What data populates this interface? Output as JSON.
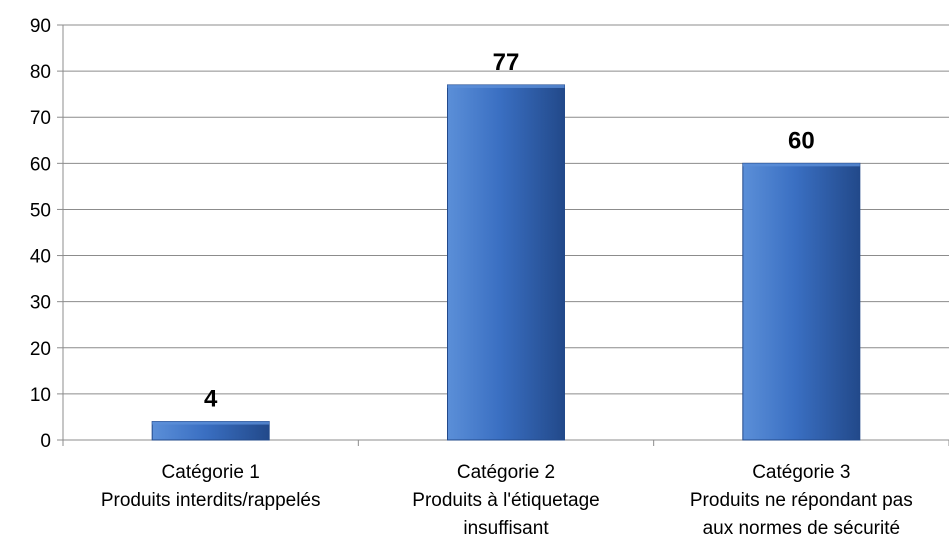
{
  "chart_data": {
    "type": "bar",
    "categories": [
      [
        "Catégorie 1",
        "Produits interdits/rappelés"
      ],
      [
        "Catégorie 2",
        "Produits à l'étiquetage",
        "insuffisant"
      ],
      [
        "Catégorie 3",
        "Produits ne répondant pas",
        "aux normes de sécurité"
      ]
    ],
    "values": [
      4,
      77,
      60
    ],
    "data_labels": [
      "4",
      "77",
      "60"
    ],
    "ylim": [
      0,
      90
    ],
    "yticks": [
      0,
      10,
      20,
      30,
      40,
      50,
      60,
      70,
      80,
      90
    ],
    "ytick_labels": [
      "0",
      "10",
      "20",
      "30",
      "40",
      "50",
      "60",
      "70",
      "80",
      "90"
    ],
    "grid": true,
    "legend": false,
    "colors": {
      "bar_light": "#5B8FD8",
      "bar_mid": "#3A6FC2",
      "bar_dark": "#22498A",
      "gridline": "#8C8C8C",
      "axis": "#8C8C8C"
    }
  }
}
